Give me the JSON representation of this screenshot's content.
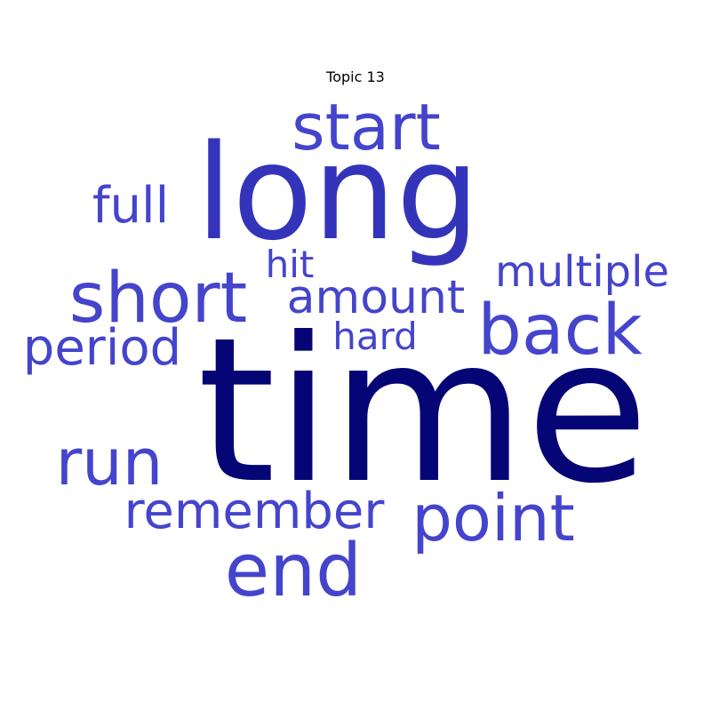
{
  "chart_data": {
    "type": "wordcloud",
    "title": "Topic 13",
    "words": [
      {
        "text": "time",
        "weight": 1.0,
        "color": "#050575"
      },
      {
        "text": "long",
        "weight": 0.86,
        "color": "#3434BB"
      },
      {
        "text": "short",
        "weight": 0.52,
        "color": "#4444CC"
      },
      {
        "text": "back",
        "weight": 0.52,
        "color": "#4444CC"
      },
      {
        "text": "start",
        "weight": 0.52,
        "color": "#4444CC"
      },
      {
        "text": "end",
        "weight": 0.52,
        "color": "#4444CC"
      },
      {
        "text": "run",
        "weight": 0.52,
        "color": "#4444CC"
      },
      {
        "text": "point",
        "weight": 0.52,
        "color": "#4444CC"
      },
      {
        "text": "remember",
        "weight": 0.38,
        "color": "#4444CC"
      },
      {
        "text": "amount",
        "weight": 0.38,
        "color": "#4444CC"
      },
      {
        "text": "period",
        "weight": 0.38,
        "color": "#4444CC"
      },
      {
        "text": "full",
        "weight": 0.38,
        "color": "#4444CC"
      },
      {
        "text": "multiple",
        "weight": 0.34,
        "color": "#4444CC"
      },
      {
        "text": "hit",
        "weight": 0.3,
        "color": "#4444CC"
      },
      {
        "text": "hard",
        "weight": 0.3,
        "color": "#4444CC"
      }
    ]
  }
}
